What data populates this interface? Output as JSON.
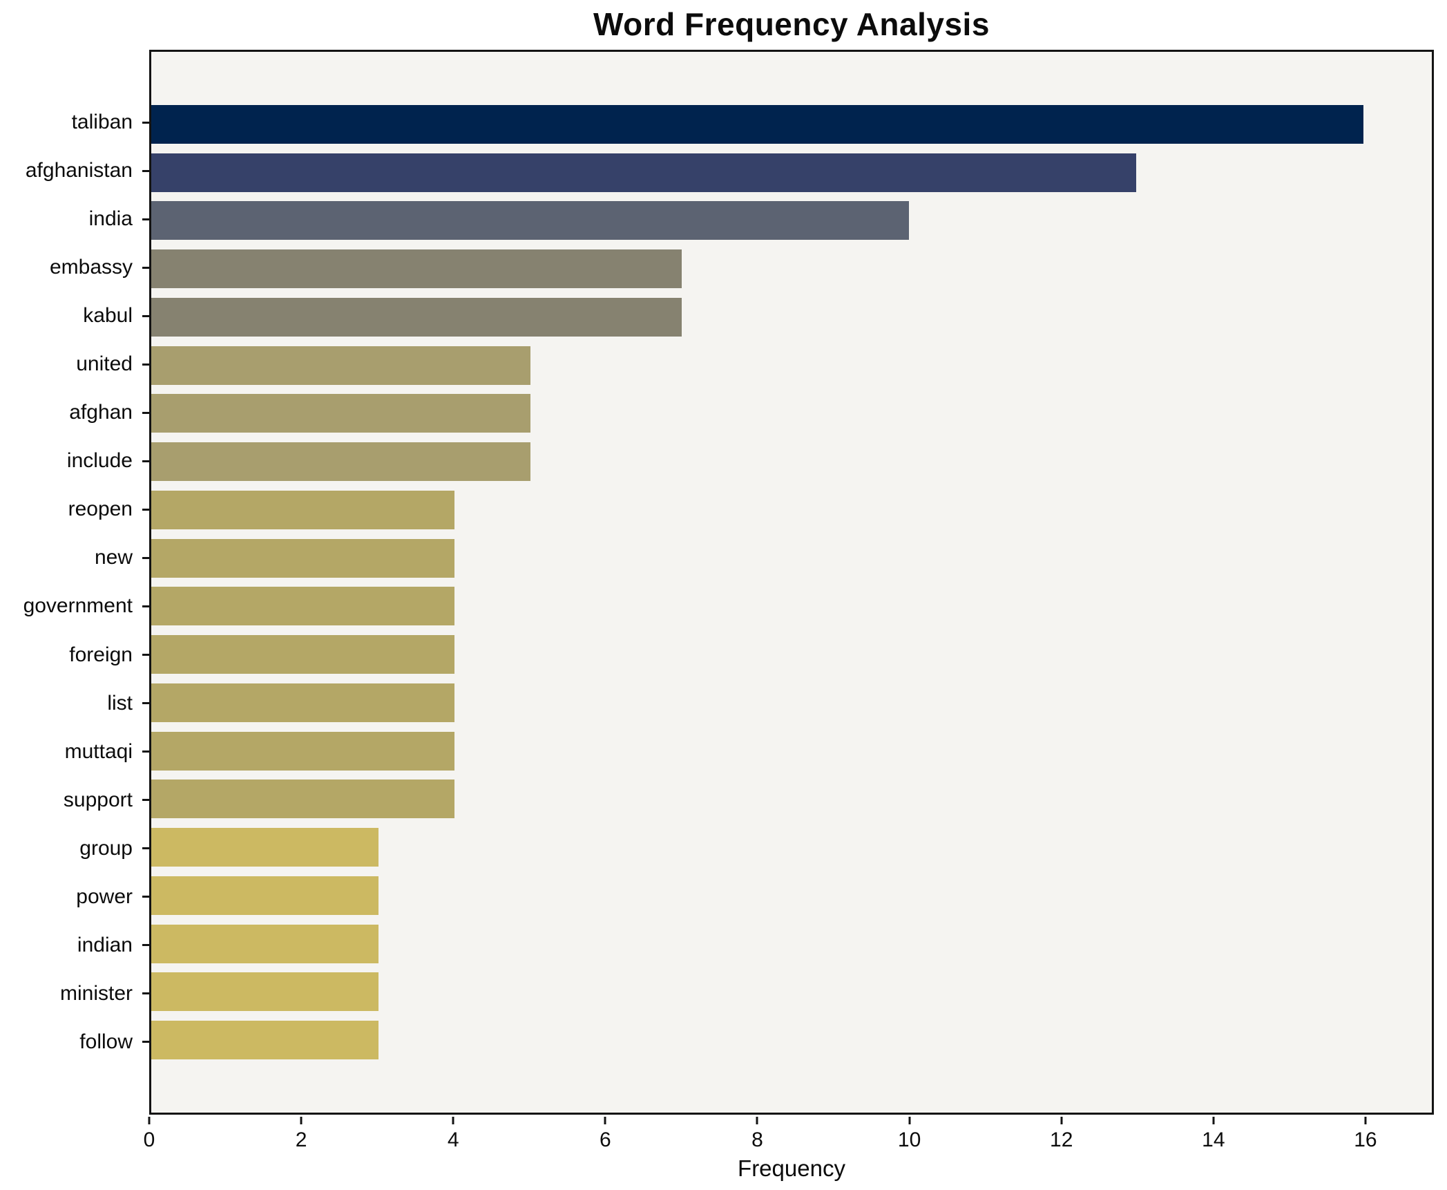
{
  "title": "Word Frequency Analysis",
  "chart_data": {
    "type": "bar",
    "orientation": "horizontal",
    "title": "Word Frequency Analysis",
    "xlabel": "Frequency",
    "ylabel": "",
    "xlim": [
      0,
      16.9
    ],
    "xticks": [
      0,
      2,
      4,
      6,
      8,
      10,
      12,
      14,
      16
    ],
    "grid": false,
    "legend": "none",
    "plot_background": "#f5f4f1",
    "figure_background": "#ffffff",
    "categories": [
      "taliban",
      "afghanistan",
      "india",
      "embassy",
      "kabul",
      "united",
      "afghan",
      "include",
      "reopen",
      "new",
      "government",
      "foreign",
      "list",
      "muttaqi",
      "support",
      "group",
      "power",
      "indian",
      "minister",
      "follow"
    ],
    "values": [
      16,
      13,
      10,
      7,
      7,
      5,
      5,
      5,
      4,
      4,
      4,
      4,
      4,
      4,
      4,
      3,
      3,
      3,
      3,
      3
    ],
    "bar_colors": [
      "#00234e",
      "#364169",
      "#5c6372",
      "#868270",
      "#868270",
      "#a89e6e",
      "#a89e6e",
      "#a89e6e",
      "#b4a766",
      "#b4a766",
      "#b4a766",
      "#b4a766",
      "#b4a766",
      "#b4a766",
      "#b4a766",
      "#ccb962",
      "#ccb962",
      "#ccb962",
      "#ccb962",
      "#ccb962"
    ]
  }
}
